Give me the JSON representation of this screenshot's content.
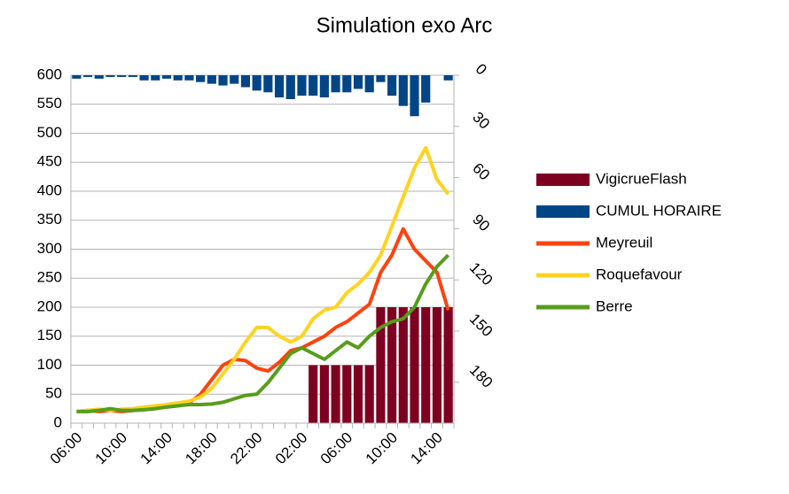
{
  "chart_data": {
    "type": "combo",
    "title": "Simulation exo Arc",
    "categories": [
      "06:00",
      null,
      null,
      null,
      "10:00",
      null,
      null,
      null,
      "14:00",
      null,
      null,
      null,
      "18:00",
      null,
      null,
      null,
      "22:00",
      null,
      null,
      null,
      "02:00",
      null,
      null,
      null,
      "06:00",
      null,
      null,
      null,
      "10:00",
      null,
      null,
      null,
      "14:00",
      null
    ],
    "ylim": [
      0,
      600
    ],
    "yticks": [
      0,
      50,
      100,
      150,
      200,
      250,
      300,
      350,
      400,
      450,
      500,
      550,
      600
    ],
    "y2lim": [
      0,
      204
    ],
    "y2ticks": [
      0,
      30,
      60,
      90,
      120,
      150,
      180
    ],
    "y2_inverted": true,
    "grid": true,
    "legend": "right",
    "series": [
      {
        "name": "VigicrueFlash",
        "type": "bar",
        "color": "#7e0021",
        "values": [
          0,
          0,
          0,
          0,
          0,
          0,
          0,
          0,
          0,
          0,
          0,
          0,
          0,
          0,
          0,
          0,
          0,
          0,
          0,
          0,
          0,
          100,
          100,
          100,
          100,
          100,
          100,
          200,
          200,
          200,
          200,
          200,
          200,
          200
        ]
      },
      {
        "name": "CUMUL HORAIRE",
        "type": "bar",
        "axis": "y2",
        "color": "#004586",
        "values": [
          2,
          1,
          2,
          1,
          1,
          1,
          3,
          3,
          2,
          3,
          3,
          4,
          5,
          6,
          5,
          7,
          9,
          10,
          13,
          14,
          12,
          12,
          13,
          10,
          10,
          8,
          10,
          4,
          12,
          18,
          24,
          16,
          0,
          3
        ]
      },
      {
        "name": "Meyreuil",
        "type": "line",
        "color": "#ff420e",
        "values": [
          20,
          22,
          20,
          22,
          20,
          22,
          24,
          26,
          28,
          30,
          35,
          50,
          75,
          100,
          110,
          108,
          95,
          90,
          105,
          125,
          130,
          140,
          150,
          165,
          175,
          190,
          205,
          260,
          290,
          335,
          300,
          280,
          260,
          195
        ]
      },
      {
        "name": "Roquefavour",
        "type": "line",
        "color": "#ffd320",
        "values": [
          20,
          22,
          24,
          22,
          24,
          25,
          28,
          30,
          32,
          35,
          38,
          45,
          60,
          85,
          110,
          140,
          165,
          165,
          150,
          140,
          150,
          180,
          195,
          200,
          225,
          240,
          260,
          290,
          340,
          390,
          440,
          475,
          420,
          395
        ]
      },
      {
        "name": "Berre",
        "type": "line",
        "color": "#579d1c",
        "values": [
          20,
          20,
          22,
          25,
          22,
          22,
          23,
          25,
          28,
          30,
          32,
          32,
          33,
          36,
          42,
          48,
          50,
          70,
          95,
          120,
          130,
          120,
          110,
          125,
          140,
          130,
          150,
          165,
          175,
          180,
          200,
          240,
          270,
          290
        ]
      }
    ]
  }
}
